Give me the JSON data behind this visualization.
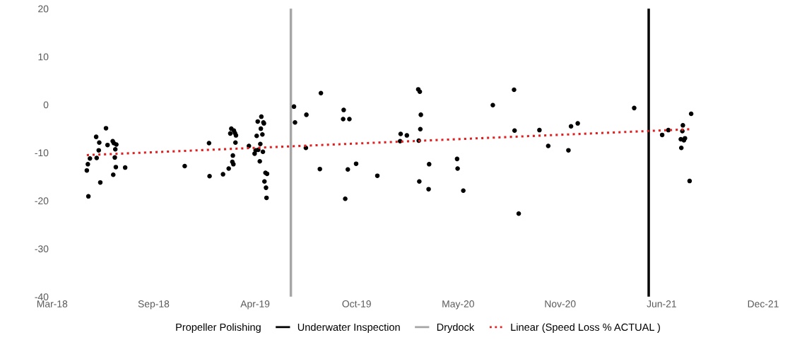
{
  "chart_data": {
    "type": "scatter",
    "legend": "bottom",
    "grid": false,
    "marker": "circle",
    "xlim": [
      "2018-03-15",
      "2021-12-17"
    ],
    "xticks": [
      {
        "value": "2018-03-15",
        "label": "Mar-18"
      },
      {
        "value": "2018-09-27",
        "label": "Sep-18"
      },
      {
        "value": "2019-04-11",
        "label": "Apr-19"
      },
      {
        "value": "2019-10-24",
        "label": "Oct-19"
      },
      {
        "value": "2020-05-07",
        "label": "May-20"
      },
      {
        "value": "2020-11-20",
        "label": "Nov-20"
      },
      {
        "value": "2021-06-04",
        "label": "Jun-21"
      },
      {
        "value": "2021-12-17",
        "label": "Dec-21"
      }
    ],
    "ylim": [
      -40,
      20
    ],
    "yticks": [
      -40,
      -30,
      -20,
      -10,
      0,
      10,
      20
    ],
    "ref_lines": [
      {
        "axis": "x",
        "value": "2021-05-10",
        "label": "Underwater Inspection",
        "color": "#000000"
      },
      {
        "axis": "x",
        "value": "2019-06-19",
        "label": "Drydock",
        "color": "#a6a6a6"
      }
    ],
    "series": [
      {
        "color": "#000000",
        "x": [
          "2018-05-21",
          "2018-05-23",
          "2018-05-24",
          "2018-05-27",
          "2018-06-08",
          "2018-06-09",
          "2018-06-13",
          "2018-06-14",
          "2018-06-16",
          "2018-06-27",
          "2018-06-30",
          "2018-07-10",
          "2018-07-11",
          "2018-07-12",
          "2018-07-14",
          "2018-07-15",
          "2018-07-17",
          "2018-07-16",
          "2018-08-03",
          "2018-11-26",
          "2019-01-12",
          "2019-01-13",
          "2019-02-08",
          "2019-02-19",
          "2019-02-22",
          "2019-02-24",
          "2019-02-27",
          "2019-02-26",
          "2019-02-28",
          "2019-03-01",
          "2019-03-03",
          "2019-03-05",
          "2019-03-04",
          "2019-03-30",
          "2019-04-10",
          "2019-04-12",
          "2019-04-14",
          "2019-04-16",
          "2019-04-17",
          "2019-04-20",
          "2019-04-21",
          "2019-04-22",
          "2019-04-23",
          "2019-04-25",
          "2019-04-26",
          "2019-04-27",
          "2019-04-28",
          "2019-05-01",
          "2019-05-04",
          "2019-04-29",
          "2019-05-02",
          "2019-05-03",
          "2019-06-25",
          "2019-06-27",
          "2019-07-18",
          "2019-07-19",
          "2019-08-14",
          "2019-08-16",
          "2019-09-29",
          "2019-09-28",
          "2019-10-10",
          "2019-10-02",
          "2019-10-07",
          "2019-10-23",
          "2019-12-03",
          "2020-01-17",
          "2020-01-16",
          "2020-01-29",
          "2020-02-20",
          "2020-02-23",
          "2020-02-25",
          "2020-02-24",
          "2020-02-21",
          "2020-02-22",
          "2020-03-12",
          "2020-03-11",
          "2020-05-05",
          "2020-05-06",
          "2020-05-17",
          "2020-07-13",
          "2020-08-23",
          "2020-08-24",
          "2020-09-01",
          "2020-10-11",
          "2020-10-28",
          "2020-12-06",
          "2020-12-11",
          "2020-12-24",
          "2021-04-12",
          "2021-06-05",
          "2021-06-17",
          "2021-07-15",
          "2021-07-14",
          "2021-07-11",
          "2021-07-19",
          "2021-07-17",
          "2021-07-12",
          "2021-07-28",
          "2021-07-31"
        ],
        "values": [
          -13.7,
          -12.4,
          -19.1,
          -11.2,
          -6.7,
          -11.1,
          -9.5,
          -7.9,
          -16.2,
          -4.9,
          -8.4,
          -7.6,
          -14.6,
          -8.0,
          -11.0,
          -9.3,
          -8.3,
          -13.0,
          -13.1,
          -12.8,
          -8.0,
          -14.9,
          -14.5,
          -13.3,
          -6.0,
          -5.0,
          -10.6,
          -11.9,
          -12.4,
          -5.4,
          -5.9,
          -6.4,
          -7.9,
          -8.6,
          -10.2,
          -9.5,
          -6.5,
          -3.5,
          -9.4,
          -11.8,
          -8.2,
          -5.0,
          -2.5,
          -6.2,
          -9.8,
          -3.7,
          -3.9,
          -14.2,
          -14.4,
          -16.0,
          -17.3,
          -19.4,
          -0.4,
          -3.7,
          -9.0,
          -2.1,
          -13.4,
          2.4,
          -1.1,
          -3.0,
          -3.0,
          -19.6,
          -13.5,
          -12.3,
          -14.8,
          -6.1,
          -7.6,
          -6.4,
          3.2,
          2.7,
          -2.1,
          -5.1,
          -7.5,
          -16.0,
          -12.4,
          -17.6,
          -11.3,
          -13.3,
          -17.9,
          -0.1,
          3.1,
          -5.4,
          -22.7,
          -5.3,
          -8.6,
          -9.5,
          -4.5,
          -3.9,
          -0.7,
          -6.3,
          -5.3,
          -4.3,
          -5.5,
          -7.2,
          -7.0,
          -7.4,
          -9.0,
          -15.9,
          -1.9
        ]
      },
      {
        "type": "line",
        "name": "Propeller Polishing"
      },
      {
        "type": "line",
        "name": "Linear (Speed Loss % ACTUAL )",
        "color": "#e02020",
        "line_style": "dotted",
        "marker": "none",
        "x": [
          "2018-05-21",
          "2021-07-31"
        ],
        "values": [
          -10.5,
          -5.1
        ]
      }
    ]
  }
}
